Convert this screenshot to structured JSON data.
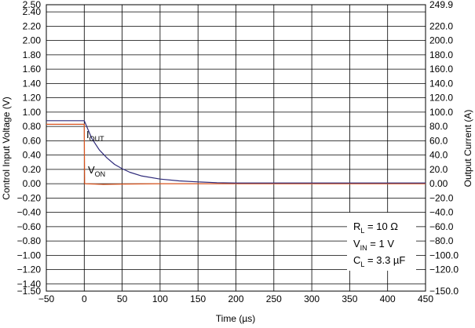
{
  "chart_data": {
    "type": "line",
    "xlabel": "Time (µs)",
    "ylabel": "Control Input Voltage (V)",
    "y2label": "Output Current (A)",
    "xlim": [
      -50,
      450
    ],
    "ylim": [
      -1.5,
      2.5
    ],
    "y2lim": [
      -150.0,
      249.9
    ],
    "grid": true,
    "x_ticks": [
      "−50",
      "0",
      "50",
      "100",
      "150",
      "200",
      "250",
      "300",
      "350",
      "400",
      "450"
    ],
    "y_ticks": [
      "−1.50",
      "−1.40",
      "−1.20",
      "−1.00",
      "−0.80",
      "−0.60",
      "−0.40",
      "−0.20",
      "0.00",
      "0.20",
      "0.40",
      "0.60",
      "0.80",
      "1.00",
      "1.20",
      "1.40",
      "1.60",
      "1.80",
      "2.00",
      "2.20",
      "2.40",
      "2.50"
    ],
    "y2_ticks": [
      "−150.0",
      "−120.0",
      "−100.0",
      "−80.0",
      "−60.0",
      "−40.0",
      "−20.0",
      "0.00",
      "20.0",
      "40.0",
      "60.0",
      "80.0",
      "100.0",
      "120.0",
      "140.0",
      "160.0",
      "180.0",
      "200.0",
      "220.0",
      "249.9"
    ],
    "series": [
      {
        "name": "V_ON",
        "axis": "left",
        "color": "#d9541e",
        "x": [
          -50,
          0,
          0.5,
          25,
          50,
          100,
          150,
          200,
          300,
          400,
          450
        ],
        "y": [
          0.83,
          0.83,
          0.0,
          -0.01,
          -0.005,
          0.0,
          0.0,
          0.0,
          0.0,
          0.0,
          0.0
        ]
      },
      {
        "name": "I_OUT",
        "axis": "left",
        "color": "#2e2a7a",
        "x": [
          -50,
          0,
          10,
          20,
          30,
          40,
          50,
          60,
          75,
          100,
          125,
          150,
          175,
          200,
          250,
          300,
          350,
          400,
          450
        ],
        "y": [
          0.88,
          0.88,
          0.63,
          0.47,
          0.36,
          0.27,
          0.21,
          0.16,
          0.11,
          0.065,
          0.04,
          0.025,
          0.015,
          0.01,
          0.01,
          0.01,
          0.01,
          0.01,
          0.01
        ]
      }
    ],
    "curve_labels": [
      {
        "main": "I",
        "sub": "OUT"
      },
      {
        "main": "V",
        "sub": "ON"
      }
    ],
    "annotation_box": [
      {
        "main": "R",
        "sub": "L",
        "rest": " = 10 Ω"
      },
      {
        "main": "V",
        "sub": "IN",
        "rest": " = 1 V"
      },
      {
        "main": "C",
        "sub": "L",
        "rest": " = 3.3 µF"
      }
    ]
  }
}
